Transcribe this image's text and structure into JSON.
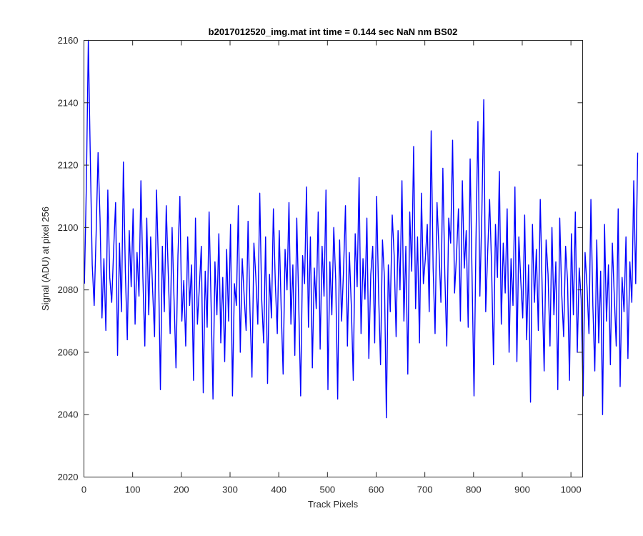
{
  "chart_data": {
    "type": "line",
    "title": "b2017012520_img.mat int time = 0.144 sec  NaN nm BS02",
    "xlabel": "Track Pixels",
    "ylabel": "Signal (ADU) at pixel 256",
    "xlim": [
      0,
      1024
    ],
    "ylim": [
      2020,
      2160
    ],
    "xticks": [
      0,
      100,
      200,
      300,
      400,
      500,
      600,
      700,
      800,
      900,
      1000
    ],
    "yticks": [
      2020,
      2040,
      2060,
      2080,
      2100,
      2120,
      2140,
      2160
    ],
    "grid": false,
    "legend": "none",
    "series": [
      {
        "color": "#0000ff",
        "x_start": 1,
        "x_step": 4,
        "values": [
          2082,
          2114,
          2160,
          2123,
          2088,
          2075,
          2098,
          2124,
          2103,
          2071,
          2090,
          2067,
          2112,
          2084,
          2076,
          2093,
          2108,
          2059,
          2095,
          2073,
          2121,
          2086,
          2064,
          2099,
          2081,
          2106,
          2069,
          2092,
          2078,
          2115,
          2084,
          2062,
          2103,
          2072,
          2097,
          2080,
          2065,
          2112,
          2088,
          2048,
          2094,
          2073,
          2107,
          2086,
          2066,
          2100,
          2077,
          2055,
          2091,
          2110,
          2070,
          2083,
          2062,
          2097,
          2075,
          2088,
          2051,
          2103,
          2069,
          2081,
          2094,
          2047,
          2086,
          2068,
          2105,
          2076,
          2045,
          2089,
          2072,
          2098,
          2063,
          2084,
          2057,
          2093,
          2070,
          2101,
          2046,
          2082,
          2075,
          2107,
          2060,
          2090,
          2078,
          2067,
          2102,
          2073,
          2052,
          2095,
          2084,
          2069,
          2111,
          2077,
          2063,
          2097,
          2050,
          2085,
          2071,
          2106,
          2082,
          2066,
          2099,
          2074,
          2053,
          2093,
          2080,
          2108,
          2069,
          2088,
          2059,
          2103,
          2076,
          2046,
          2091,
          2082,
          2113,
          2068,
          2097,
          2055,
          2087,
          2074,
          2105,
          2061,
          2094,
          2078,
          2112,
          2048,
          2089,
          2072,
          2100,
          2083,
          2045,
          2096,
          2070,
          2086,
          2107,
          2062,
          2092,
          2075,
          2051,
          2098,
          2081,
          2116,
          2066,
          2090,
          2077,
          2103,
          2058,
          2085,
          2094,
          2063,
          2110,
          2079,
          2056,
          2096,
          2084,
          2039,
          2088,
          2073,
          2104,
          2091,
          2065,
          2099,
          2080,
          2115,
          2070,
          2094,
          2053,
          2105,
          2086,
          2126,
          2074,
          2097,
          2063,
          2111,
          2082,
          2090,
          2101,
          2073,
          2131,
          2087,
          2066,
          2108,
          2093,
          2076,
          2119,
          2085,
          2062,
          2103,
          2095,
          2128,
          2079,
          2091,
          2106,
          2070,
          2115,
          2087,
          2099,
          2068,
          2122,
          2084,
          2046,
          2096,
          2134,
          2078,
          2104,
          2141,
          2073,
          2092,
          2109,
          2088,
          2056,
          2101,
          2084,
          2118,
          2069,
          2095,
          2079,
          2106,
          2060,
          2090,
          2075,
          2113,
          2057,
          2097,
          2083,
          2071,
          2104,
          2064,
          2088,
          2044,
          2101,
          2076,
          2093,
          2067,
          2109,
          2080,
          2054,
          2096,
          2085,
          2062,
          2100,
          2072,
          2089,
          2048,
          2103,
          2079,
          2065,
          2094,
          2083,
          2051,
          2098,
          2072,
          2105,
          2060,
          2087,
          2077,
          2046,
          2092,
          2081,
          2066,
          2109,
          2075,
          2054,
          2096,
          2063,
          2086,
          2040,
          2101,
          2070,
          2088,
          2056,
          2095,
          2078,
          2062,
          2106,
          2049,
          2084,
          2073,
          2097,
          2058,
          2089,
          2076,
          2115,
          2082,
          2124
        ]
      }
    ]
  }
}
